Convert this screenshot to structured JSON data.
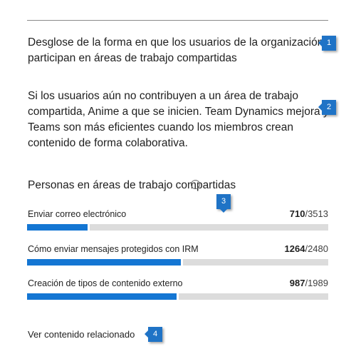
{
  "intro": {
    "paragraph1": "Desglose de la forma en que los usuarios de la organización participan en áreas de trabajo compartidas",
    "paragraph2": "Si los usuarios aún no contribuyen a un área de trabajo compartida, Anime a que se inicien. Team Dynamics mejora y Teams son más eficientes cuando los miembros crean contenido de forma colaborativa."
  },
  "section": {
    "title": "Personas en áreas de trabajo compartidas"
  },
  "metrics": [
    {
      "label": "Enviar correo electrónico",
      "value": "710",
      "total": "/3513",
      "fraction": 0.202
    },
    {
      "label": "Cómo enviar mensajes protegidos con IRM",
      "value": "1264",
      "total": "/2480",
      "fraction": 0.51
    },
    {
      "label": "Creación de tipos de contenido externo",
      "value": "987",
      "total": "/1989",
      "fraction": 0.496
    }
  ],
  "footer": {
    "related_link": "Ver contenido relacionado"
  },
  "callouts": [
    "1",
    "2",
    "3",
    "4"
  ],
  "colors": {
    "bar_fill": "#1476d3",
    "bar_track": "#dcdcdc",
    "callout": "#1f73c6"
  }
}
